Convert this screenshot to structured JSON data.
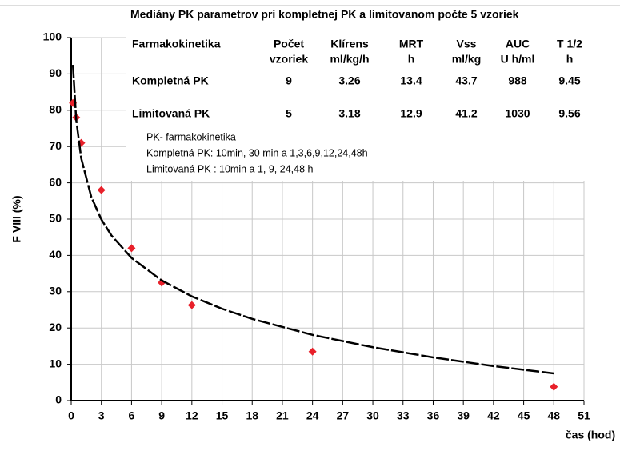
{
  "chart_data": {
    "type": "scatter",
    "xlabel": "čas (hod)",
    "ylabel": "F VIII (%)",
    "xlim": [
      0,
      51
    ],
    "xticks": [
      0,
      3,
      6,
      9,
      12,
      15,
      18,
      21,
      24,
      27,
      30,
      33,
      36,
      39,
      42,
      45,
      48,
      51
    ],
    "ylim": [
      0,
      100
    ],
    "yticks": [
      0,
      10,
      20,
      30,
      40,
      50,
      60,
      70,
      80,
      90,
      100
    ],
    "grid": true,
    "series": [
      {
        "color": "#e8202a",
        "x": [
          0.17,
          0.5,
          1,
          3,
          6,
          9,
          12,
          24,
          48
        ],
        "values": [
          82,
          78,
          71,
          58,
          42,
          32.5,
          26.3,
          13.5,
          3.8
        ]
      },
      {
        "color": "#000000",
        "x": [
          0.17,
          0.5,
          1,
          2,
          3,
          4,
          6,
          9,
          12,
          15,
          18,
          24,
          30,
          36,
          42,
          48
        ],
        "values": [
          92.5,
          77.3,
          66.7,
          56.1,
          49.9,
          45.5,
          39.3,
          33.1,
          28.7,
          25.3,
          22.5,
          18.1,
          14.7,
          11.9,
          9.5,
          7.5
        ]
      }
    ],
    "table": {
      "title": "Mediány  PK parametrov pri kompletnej PK a limitovanom počte 5 vzoriek",
      "header": [
        [
          "Farmakokinetika"
        ],
        [
          "Počet",
          "vzoriek"
        ],
        [
          "Klírens",
          "ml/kg/h"
        ],
        [
          "MRT",
          "h"
        ],
        [
          "Vss",
          "ml/kg"
        ],
        [
          "AUC",
          "U h/ml"
        ],
        [
          "T 1/2",
          "h"
        ]
      ],
      "rows": [
        [
          "Kompletná PK",
          "9",
          "3.26",
          "13.4",
          "43.7",
          "988",
          "9.45"
        ],
        [
          "Limitovaná PK",
          "5",
          "3.18",
          "12.9",
          "41.2",
          "1030",
          "9.56"
        ]
      ]
    },
    "annotations": [
      "PK- farmakokinetika",
      "Kompletná PK:  10min, 30 min a 1,3,6,9,12,24,48h",
      "Limitovaná PK : 10min a 1, 9, 24,48 h"
    ]
  }
}
